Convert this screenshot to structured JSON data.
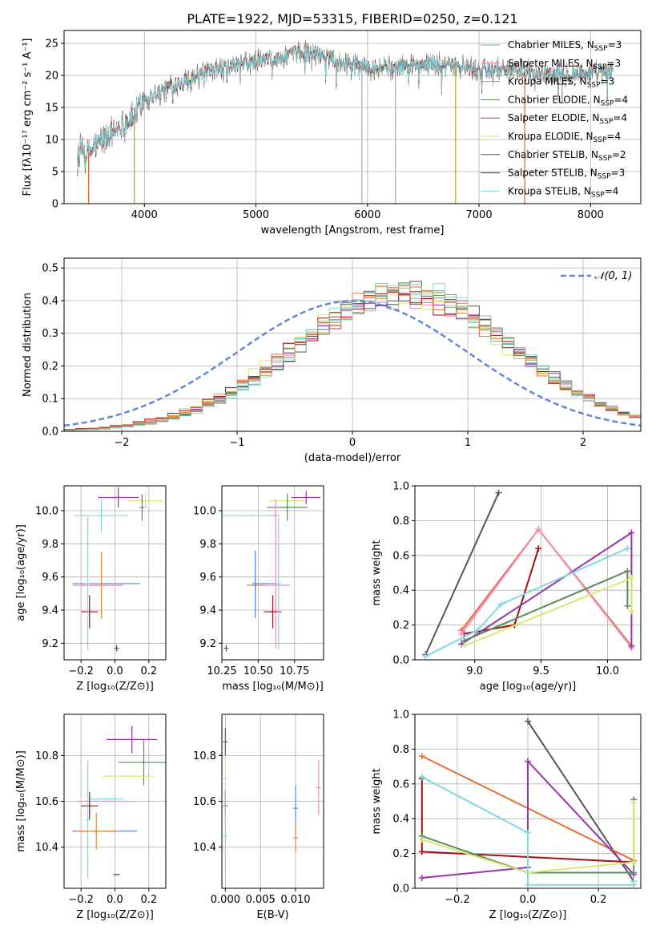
{
  "figure": {
    "title": "PLATE=1922, MJD=53315, FIBERID=0250, z=0.121"
  },
  "chart_data": [
    {
      "type": "line",
      "panel": "spectrum",
      "xlabel": "wavelength [Angstrom, rest frame]",
      "ylabel": "Flux [fλ10⁻¹⁷ erg cm⁻² s⁻¹ A⁻¹]",
      "xlim": [
        3280,
        8450
      ],
      "ylim": [
        0,
        27
      ],
      "xticks": [
        4000,
        5000,
        6000,
        7000,
        8000
      ],
      "yticks": [
        0,
        5,
        10,
        15,
        20,
        25
      ],
      "continuum": {
        "x": [
          3400,
          3500,
          3600,
          3700,
          3800,
          3900,
          4000,
          4100,
          4200,
          4300,
          4400,
          4500,
          4600,
          4700,
          4800,
          4900,
          5000,
          5100,
          5200,
          5300,
          5400,
          5500,
          5600,
          5700,
          5800,
          5900,
          6000,
          6200,
          6400,
          6600,
          6800,
          7000,
          7200,
          7400,
          7600,
          7800,
          8000,
          8200
        ],
        "y": [
          8.5,
          8.0,
          9.5,
          11.0,
          12.5,
          13.5,
          16.5,
          17.0,
          18.0,
          19.0,
          19.5,
          19.8,
          20.5,
          21.0,
          21.5,
          22.0,
          22.0,
          22.5,
          22.5,
          23.0,
          23.5,
          23.5,
          23.0,
          22.5,
          22.0,
          22.0,
          21.5,
          21.3,
          21.5,
          22.0,
          21.3,
          21.0,
          21.0,
          20.5,
          20.3,
          20.3,
          20.3,
          20.5
        ]
      },
      "series": [
        {
          "name": "Chabrier MILES, N",
          "sub": "SSP",
          "suffix": "=3",
          "color": "#5fae9a"
        },
        {
          "name": "Salpeter MILES, N",
          "sub": "SSP",
          "suffix": "=3",
          "color": "#f08cc0"
        },
        {
          "name": "Kroupa MILES, N",
          "sub": "SSP",
          "suffix": "=3",
          "color": "#d8893a"
        },
        {
          "name": "Chabrier ELODIE, N",
          "sub": "SSP",
          "suffix": "=4",
          "color": "#5b8a5b"
        },
        {
          "name": "Salpeter ELODIE, N",
          "sub": "SSP",
          "suffix": "=4",
          "color": "#9933aa"
        },
        {
          "name": "Kroupa ELODIE, N",
          "sub": "SSP",
          "suffix": "=4",
          "color": "#d9e870"
        },
        {
          "name": "Chabrier STELIB, N",
          "sub": "SSP",
          "suffix": "=2",
          "color": "#555555"
        },
        {
          "name": "Salpeter STELIB, N",
          "sub": "SSP",
          "suffix": "=3",
          "color": "#a01010"
        },
        {
          "name": "Kroupa STELIB, N",
          "sub": "SSP",
          "suffix": "=4",
          "color": "#80d8e0"
        }
      ],
      "data_line": {
        "color": "#6a6a6a"
      },
      "vertical_markers": [
        {
          "x": 3500,
          "color": "#e06020"
        },
        {
          "x": 3910,
          "color": "#b0a030"
        },
        {
          "x": 5950,
          "color": "#aaaaaa"
        },
        {
          "x": 6250,
          "color": "#aaaaaa"
        },
        {
          "x": 6790,
          "color": "#b0a030"
        },
        {
          "x": 7410,
          "color": "#e06020"
        }
      ]
    },
    {
      "type": "histogram",
      "panel": "residuals",
      "xlabel": "(data-model)/error",
      "ylabel": "Normed distribution",
      "xlim": [
        -2.5,
        2.5
      ],
      "ylim": [
        0,
        0.53
      ],
      "xticks": [
        -2,
        -1,
        0,
        1,
        2
      ],
      "yticks": [
        0.0,
        0.1,
        0.2,
        0.3,
        0.4,
        0.5
      ],
      "bin_width": 0.1,
      "mean": 0.45,
      "sd": 0.95,
      "gaussian": {
        "label": "𝒩(0, 1)",
        "color": "#6088d8",
        "mu": 0,
        "sigma": 1
      },
      "series_colors": [
        "#5fae9a",
        "#f08cc0",
        "#d8893a",
        "#5b8a5b",
        "#9933aa",
        "#d9e870",
        "#555555",
        "#a01010",
        "#80d8e0",
        "#e87030",
        "#90c090"
      ]
    },
    {
      "type": "scatter",
      "panel": "age_vs_Z",
      "xlabel": "Z [log₁₀(Z/Z⊙)]",
      "ylabel": "age  [log₁₀(age/yr)]",
      "xlim": [
        -0.3,
        0.3
      ],
      "ylim": [
        9.1,
        10.15
      ],
      "xticks": [
        -0.2,
        0.0,
        0.2
      ],
      "yticks": [
        9.2,
        9.4,
        9.6,
        9.8,
        10.0
      ],
      "points": [
        {
          "x": 0.02,
          "y": 10.08,
          "xerr": 0.12,
          "yerr": 0.06,
          "color": "#9933aa"
        },
        {
          "x": 0.18,
          "y": 10.06,
          "xerr": 0.1,
          "yerr": 0.05,
          "color": "#d9e870"
        },
        {
          "x": 0.16,
          "y": 10.02,
          "xerr": 0.0,
          "yerr": 0.08,
          "color": "#5b8a5b"
        },
        {
          "x": -0.08,
          "y": 9.97,
          "xerr": 0.16,
          "yerr": 0.1,
          "color": "#80d8e0"
        },
        {
          "x": -0.08,
          "y": 9.55,
          "xerr": 0.12,
          "yerr": 0.2,
          "color": "#d8893a"
        },
        {
          "x": -0.05,
          "y": 9.56,
          "xerr": 0.2,
          "yerr": 0.0,
          "color": "#6088d8"
        },
        {
          "x": -0.1,
          "y": 9.55,
          "xerr": 0.15,
          "yerr": 0.0,
          "color": "#f08cc0"
        },
        {
          "x": -0.15,
          "y": 9.39,
          "xerr": 0.05,
          "yerr": 0.1,
          "color": "#a01010"
        },
        {
          "x": -0.16,
          "y": 9.56,
          "xerr": 0.0,
          "yerr": 0.4,
          "color": "#80d8e0"
        },
        {
          "x": 0.01,
          "y": 9.17,
          "xerr": 0.01,
          "yerr": 0.02,
          "color": "#555555"
        }
      ]
    },
    {
      "type": "scatter",
      "panel": "age_vs_mass",
      "xlabel": "mass [log₁₀(M/M⊙)]",
      "ylabel": "",
      "xlim": [
        10.25,
        10.95
      ],
      "ylim": [
        9.1,
        10.15
      ],
      "xticks": [
        10.25,
        10.5,
        10.75
      ],
      "xticklabels": [
        "10.25",
        "10.50",
        "10.75"
      ],
      "yticks": [
        9.2,
        9.4,
        9.6,
        9.8,
        10.0
      ],
      "points": [
        {
          "x": 10.83,
          "y": 10.08,
          "xerr": 0.1,
          "yerr": 0.04,
          "color": "#9933aa"
        },
        {
          "x": 10.7,
          "y": 10.06,
          "xerr": 0.12,
          "yerr": 0.05,
          "color": "#d9e870"
        },
        {
          "x": 10.7,
          "y": 10.02,
          "xerr": 0.14,
          "yerr": 0.08,
          "color": "#5b8a5b"
        },
        {
          "x": 10.45,
          "y": 9.97,
          "xerr": 0.2,
          "yerr": 0.0,
          "color": "#80d8e0"
        },
        {
          "x": 10.62,
          "y": 9.97,
          "xerr": 0.0,
          "yerr": 0.1,
          "color": "#f08cc0"
        },
        {
          "x": 10.54,
          "y": 9.56,
          "xerr": 0.08,
          "yerr": 0.0,
          "color": "#6088d8"
        },
        {
          "x": 10.62,
          "y": 9.55,
          "xerr": 0.1,
          "yerr": 0.38,
          "color": "#f08cc0"
        },
        {
          "x": 10.48,
          "y": 9.55,
          "xerr": 0.06,
          "yerr": 0.2,
          "color": "#d8893a"
        },
        {
          "x": 10.6,
          "y": 9.39,
          "xerr": 0.06,
          "yerr": 0.1,
          "color": "#a01010"
        },
        {
          "x": 10.64,
          "y": 9.56,
          "xerr": 0.0,
          "yerr": 0.4,
          "color": "#80d8e0"
        },
        {
          "x": 10.48,
          "y": 9.56,
          "xerr": 0.0,
          "yerr": 0.2,
          "color": "#6088d8"
        },
        {
          "x": 10.28,
          "y": 9.17,
          "xerr": 0.0,
          "yerr": 0.02,
          "color": "#555555"
        }
      ]
    },
    {
      "type": "line",
      "panel": "weight_vs_age",
      "xlabel": "age  [log₁₀(age/yr)]",
      "ylabel": "mass weight",
      "xlim": [
        8.55,
        10.25
      ],
      "ylim": [
        0,
        1
      ],
      "xticks": [
        9.0,
        9.5,
        10.0
      ],
      "yticks": [
        0.0,
        0.2,
        0.4,
        0.6,
        0.8,
        1.0
      ],
      "series": [
        {
          "color": "#555555",
          "x": [
            8.63,
            9.18
          ],
          "y": [
            0.03,
            0.96
          ]
        },
        {
          "color": "#a01010",
          "x": [
            8.92,
            9.3,
            9.48
          ],
          "y": [
            0.15,
            0.2,
            0.64
          ]
        },
        {
          "color": "#e87030",
          "x": [
            8.9,
            9.48,
            10.18
          ],
          "y": [
            0.17,
            0.75,
            0.08
          ]
        },
        {
          "color": "#f08cc0",
          "x": [
            8.9,
            9.48,
            10.18
          ],
          "y": [
            0.15,
            0.75,
            0.07
          ]
        },
        {
          "color": "#9933aa",
          "x": [
            8.9,
            10.18,
            10.18
          ],
          "y": [
            0.09,
            0.73,
            0.08
          ]
        },
        {
          "color": "#5b8a5b",
          "x": [
            8.92,
            10.15,
            10.15
          ],
          "y": [
            0.11,
            0.51,
            0.31
          ]
        },
        {
          "color": "#d9e870",
          "x": [
            8.92,
            10.18,
            10.18
          ],
          "y": [
            0.08,
            0.47,
            0.28
          ]
        },
        {
          "color": "#80d8e0",
          "x": [
            8.63,
            9.02,
            9.2,
            10.15
          ],
          "y": [
            0.02,
            0.17,
            0.32,
            0.64
          ]
        }
      ]
    },
    {
      "type": "scatter",
      "panel": "mass_vs_Z",
      "xlabel": "Z [log₁₀(Z/Z⊙)]",
      "ylabel": "mass [log₁₀(M/M⊙)]",
      "xlim": [
        -0.3,
        0.3
      ],
      "ylim": [
        10.22,
        10.98
      ],
      "xticks": [
        -0.2,
        0.0,
        0.2
      ],
      "yticks": [
        10.4,
        10.6,
        10.8
      ],
      "points": [
        {
          "x": 0.1,
          "y": 10.87,
          "xerr": 0.15,
          "yerr": 0.06,
          "color": "#9933aa"
        },
        {
          "x": 0.17,
          "y": 10.77,
          "xerr": 0.15,
          "yerr": 0.1,
          "color": "#5b8a5b"
        },
        {
          "x": 0.08,
          "y": 10.71,
          "xerr": 0.15,
          "yerr": 0.0,
          "color": "#d9e870"
        },
        {
          "x": -0.05,
          "y": 10.61,
          "xerr": 0.1,
          "yerr": 0.0,
          "color": "#80d8e0"
        },
        {
          "x": -0.05,
          "y": 10.6,
          "xerr": 0.18,
          "yerr": 0.0,
          "color": "#f08cc0"
        },
        {
          "x": -0.15,
          "y": 10.58,
          "xerr": 0.05,
          "yerr": 0.06,
          "color": "#a01010"
        },
        {
          "x": -0.06,
          "y": 10.47,
          "xerr": 0.19,
          "yerr": 0.0,
          "color": "#6088d8"
        },
        {
          "x": -0.11,
          "y": 10.47,
          "xerr": 0.12,
          "yerr": 0.08,
          "color": "#d8893a"
        },
        {
          "x": -0.16,
          "y": 10.52,
          "xerr": 0.0,
          "yerr": 0.26,
          "color": "#80d8e0"
        },
        {
          "x": 0.01,
          "y": 10.28,
          "xerr": 0.02,
          "yerr": 0.0,
          "color": "#555555"
        }
      ]
    },
    {
      "type": "scatter",
      "panel": "mass_vs_ebv",
      "xlabel": "E(B-V)",
      "ylabel": "",
      "xlim": [
        -0.0005,
        0.014
      ],
      "ylim": [
        10.22,
        10.98
      ],
      "xticks": [
        0.0,
        0.005,
        0.01
      ],
      "xticklabels": [
        "0.000",
        "0.005",
        "0.010"
      ],
      "yticks": [
        10.4,
        10.6,
        10.8
      ],
      "points": [
        {
          "x": 0.0,
          "y": 10.86,
          "yerr": 0.06,
          "color": "#9933aa"
        },
        {
          "x": 0.0,
          "y": 10.7,
          "yerr": 0.1,
          "color": "#d9e870"
        },
        {
          "x": 0.0,
          "y": 10.58,
          "yerr": 0.06,
          "color": "#5b8a5b"
        },
        {
          "x": 0.0,
          "y": 10.45,
          "yerr": 0.18,
          "color": "#80d8e0"
        },
        {
          "x": 0.0,
          "y": 10.6,
          "yerr": 0.05,
          "color": "#f08cc0"
        },
        {
          "x": 0.01,
          "y": 10.57,
          "yerr": 0.1,
          "color": "#6088d8"
        },
        {
          "x": 0.01,
          "y": 10.44,
          "yerr": 0.06,
          "color": "#d8893a"
        },
        {
          "x": 0.0133,
          "y": 10.66,
          "yerr": 0.12,
          "color": "#f08cc0"
        }
      ]
    },
    {
      "type": "line",
      "panel": "weight_vs_Z",
      "xlabel": "Z [log₁₀(Z/Z⊙)]",
      "ylabel": "mass weight",
      "xlim": [
        -0.32,
        0.32
      ],
      "ylim": [
        0,
        1
      ],
      "xticks": [
        -0.2,
        0.0,
        0.2
      ],
      "yticks": [
        0.0,
        0.2,
        0.4,
        0.6,
        0.8,
        1.0
      ],
      "series": [
        {
          "color": "#555555",
          "x": [
            0.0,
            0.3
          ],
          "y": [
            0.96,
            0.04
          ]
        },
        {
          "color": "#a01010",
          "x": [
            -0.3,
            -0.3,
            0.3
          ],
          "y": [
            0.63,
            0.21,
            0.15
          ]
        },
        {
          "color": "#e87030",
          "x": [
            -0.3,
            0.3
          ],
          "y": [
            0.76,
            0.16
          ]
        },
        {
          "color": "#9933aa",
          "x": [
            -0.3,
            0.0,
            0.0,
            0.3
          ],
          "y": [
            0.06,
            0.12,
            0.73,
            0.08
          ]
        },
        {
          "color": "#5b8a5b",
          "x": [
            -0.3,
            0.0,
            0.3,
            0.3
          ],
          "y": [
            0.3,
            0.09,
            0.09,
            0.51
          ]
        },
        {
          "color": "#d9e870",
          "x": [
            -0.3,
            0.0,
            0.3,
            0.3
          ],
          "y": [
            0.28,
            0.09,
            0.15,
            0.49
          ]
        },
        {
          "color": "#80d8e0",
          "x": [
            -0.3,
            0.0,
            0.0,
            0.3,
            0.3
          ],
          "y": [
            0.64,
            0.32,
            0.02,
            0.02,
            0.04
          ]
        }
      ]
    }
  ]
}
